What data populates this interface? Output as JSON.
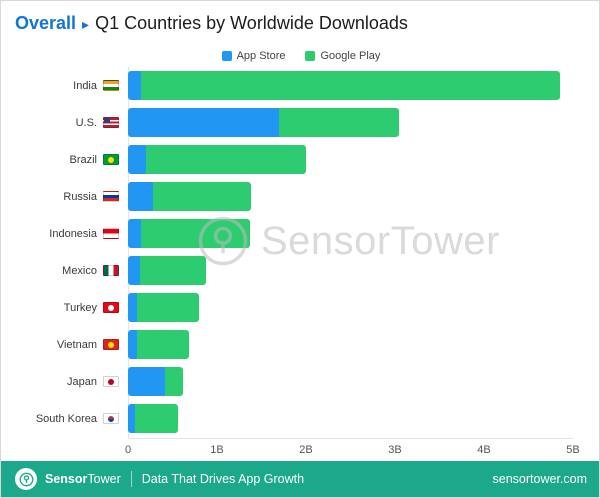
{
  "theme": {
    "accent": "#1273d9",
    "footer_bg": "#1ca98b",
    "appstore_color": "#2196f3",
    "googleplay_color": "#2ecc71"
  },
  "header": {
    "prefix": "Overall",
    "separator": "▸",
    "title": "Q1 Countries by Worldwide Downloads"
  },
  "legend": [
    {
      "label": "App Store",
      "color": "#2196f3"
    },
    {
      "label": "Google Play",
      "color": "#2ecc71"
    }
  ],
  "chart_data": {
    "type": "bar",
    "stacked": true,
    "orientation": "horizontal",
    "title": "Q1 Countries by Worldwide Downloads",
    "categories": [
      "India",
      "U.S.",
      "Brazil",
      "Russia",
      "Indonesia",
      "Mexico",
      "Turkey",
      "Vietnam",
      "Japan",
      "South Korea"
    ],
    "series": [
      {
        "name": "App Store",
        "color": "#2196f3",
        "values": [
          0.15,
          1.7,
          0.2,
          0.28,
          0.15,
          0.13,
          0.1,
          0.1,
          0.42,
          0.08
        ]
      },
      {
        "name": "Google Play",
        "color": "#2ecc71",
        "values": [
          4.7,
          1.35,
          1.8,
          1.1,
          1.22,
          0.75,
          0.7,
          0.58,
          0.2,
          0.48
        ]
      }
    ],
    "totals": [
      4.85,
      3.05,
      2.0,
      1.38,
      1.37,
      0.88,
      0.8,
      0.68,
      0.62,
      0.56
    ],
    "unit": "billions of downloads",
    "x_ticks": [
      "0",
      "1B",
      "2B",
      "3B",
      "4B",
      "5B"
    ],
    "xlim": [
      0,
      5
    ],
    "grid": false,
    "legend_position": "top-center"
  },
  "flags": [
    {
      "country": "India",
      "dir": "h",
      "colors": [
        "#ff9933",
        "#ffffff",
        "#128807"
      ]
    },
    {
      "country": "U.S.",
      "dir": "h",
      "colors": [
        "#b22234",
        "#ffffff",
        "#b22234",
        "#ffffff",
        "#b22234"
      ],
      "canton": "#3c3b6e"
    },
    {
      "country": "Brazil",
      "dir": "solid",
      "colors": [
        "#009c3b"
      ],
      "dot": "#ffdf00"
    },
    {
      "country": "Russia",
      "dir": "h",
      "colors": [
        "#ffffff",
        "#0039a6",
        "#d52b1e"
      ]
    },
    {
      "country": "Indonesia",
      "dir": "h",
      "colors": [
        "#e70011",
        "#ffffff"
      ]
    },
    {
      "country": "Mexico",
      "dir": "v",
      "colors": [
        "#006847",
        "#ffffff",
        "#ce1126"
      ]
    },
    {
      "country": "Turkey",
      "dir": "solid",
      "colors": [
        "#e30a17"
      ],
      "dot": "#ffffff"
    },
    {
      "country": "Vietnam",
      "dir": "solid",
      "colors": [
        "#da251d"
      ],
      "dot": "#ffde00"
    },
    {
      "country": "Japan",
      "dir": "solid",
      "colors": [
        "#ffffff"
      ],
      "dot": "#bc002d"
    },
    {
      "country": "South Korea",
      "dir": "solid",
      "colors": [
        "#ffffff"
      ],
      "dot": "linear-gradient(#cd2e3a 50%, #0047a0 50%)"
    }
  ],
  "watermark": {
    "text_bold": "Sensor",
    "text_light": "Tower"
  },
  "footer": {
    "brand_bold": "Sensor",
    "brand_light": "Tower",
    "tagline": "Data That Drives App Growth",
    "site": "sensortower.com"
  }
}
